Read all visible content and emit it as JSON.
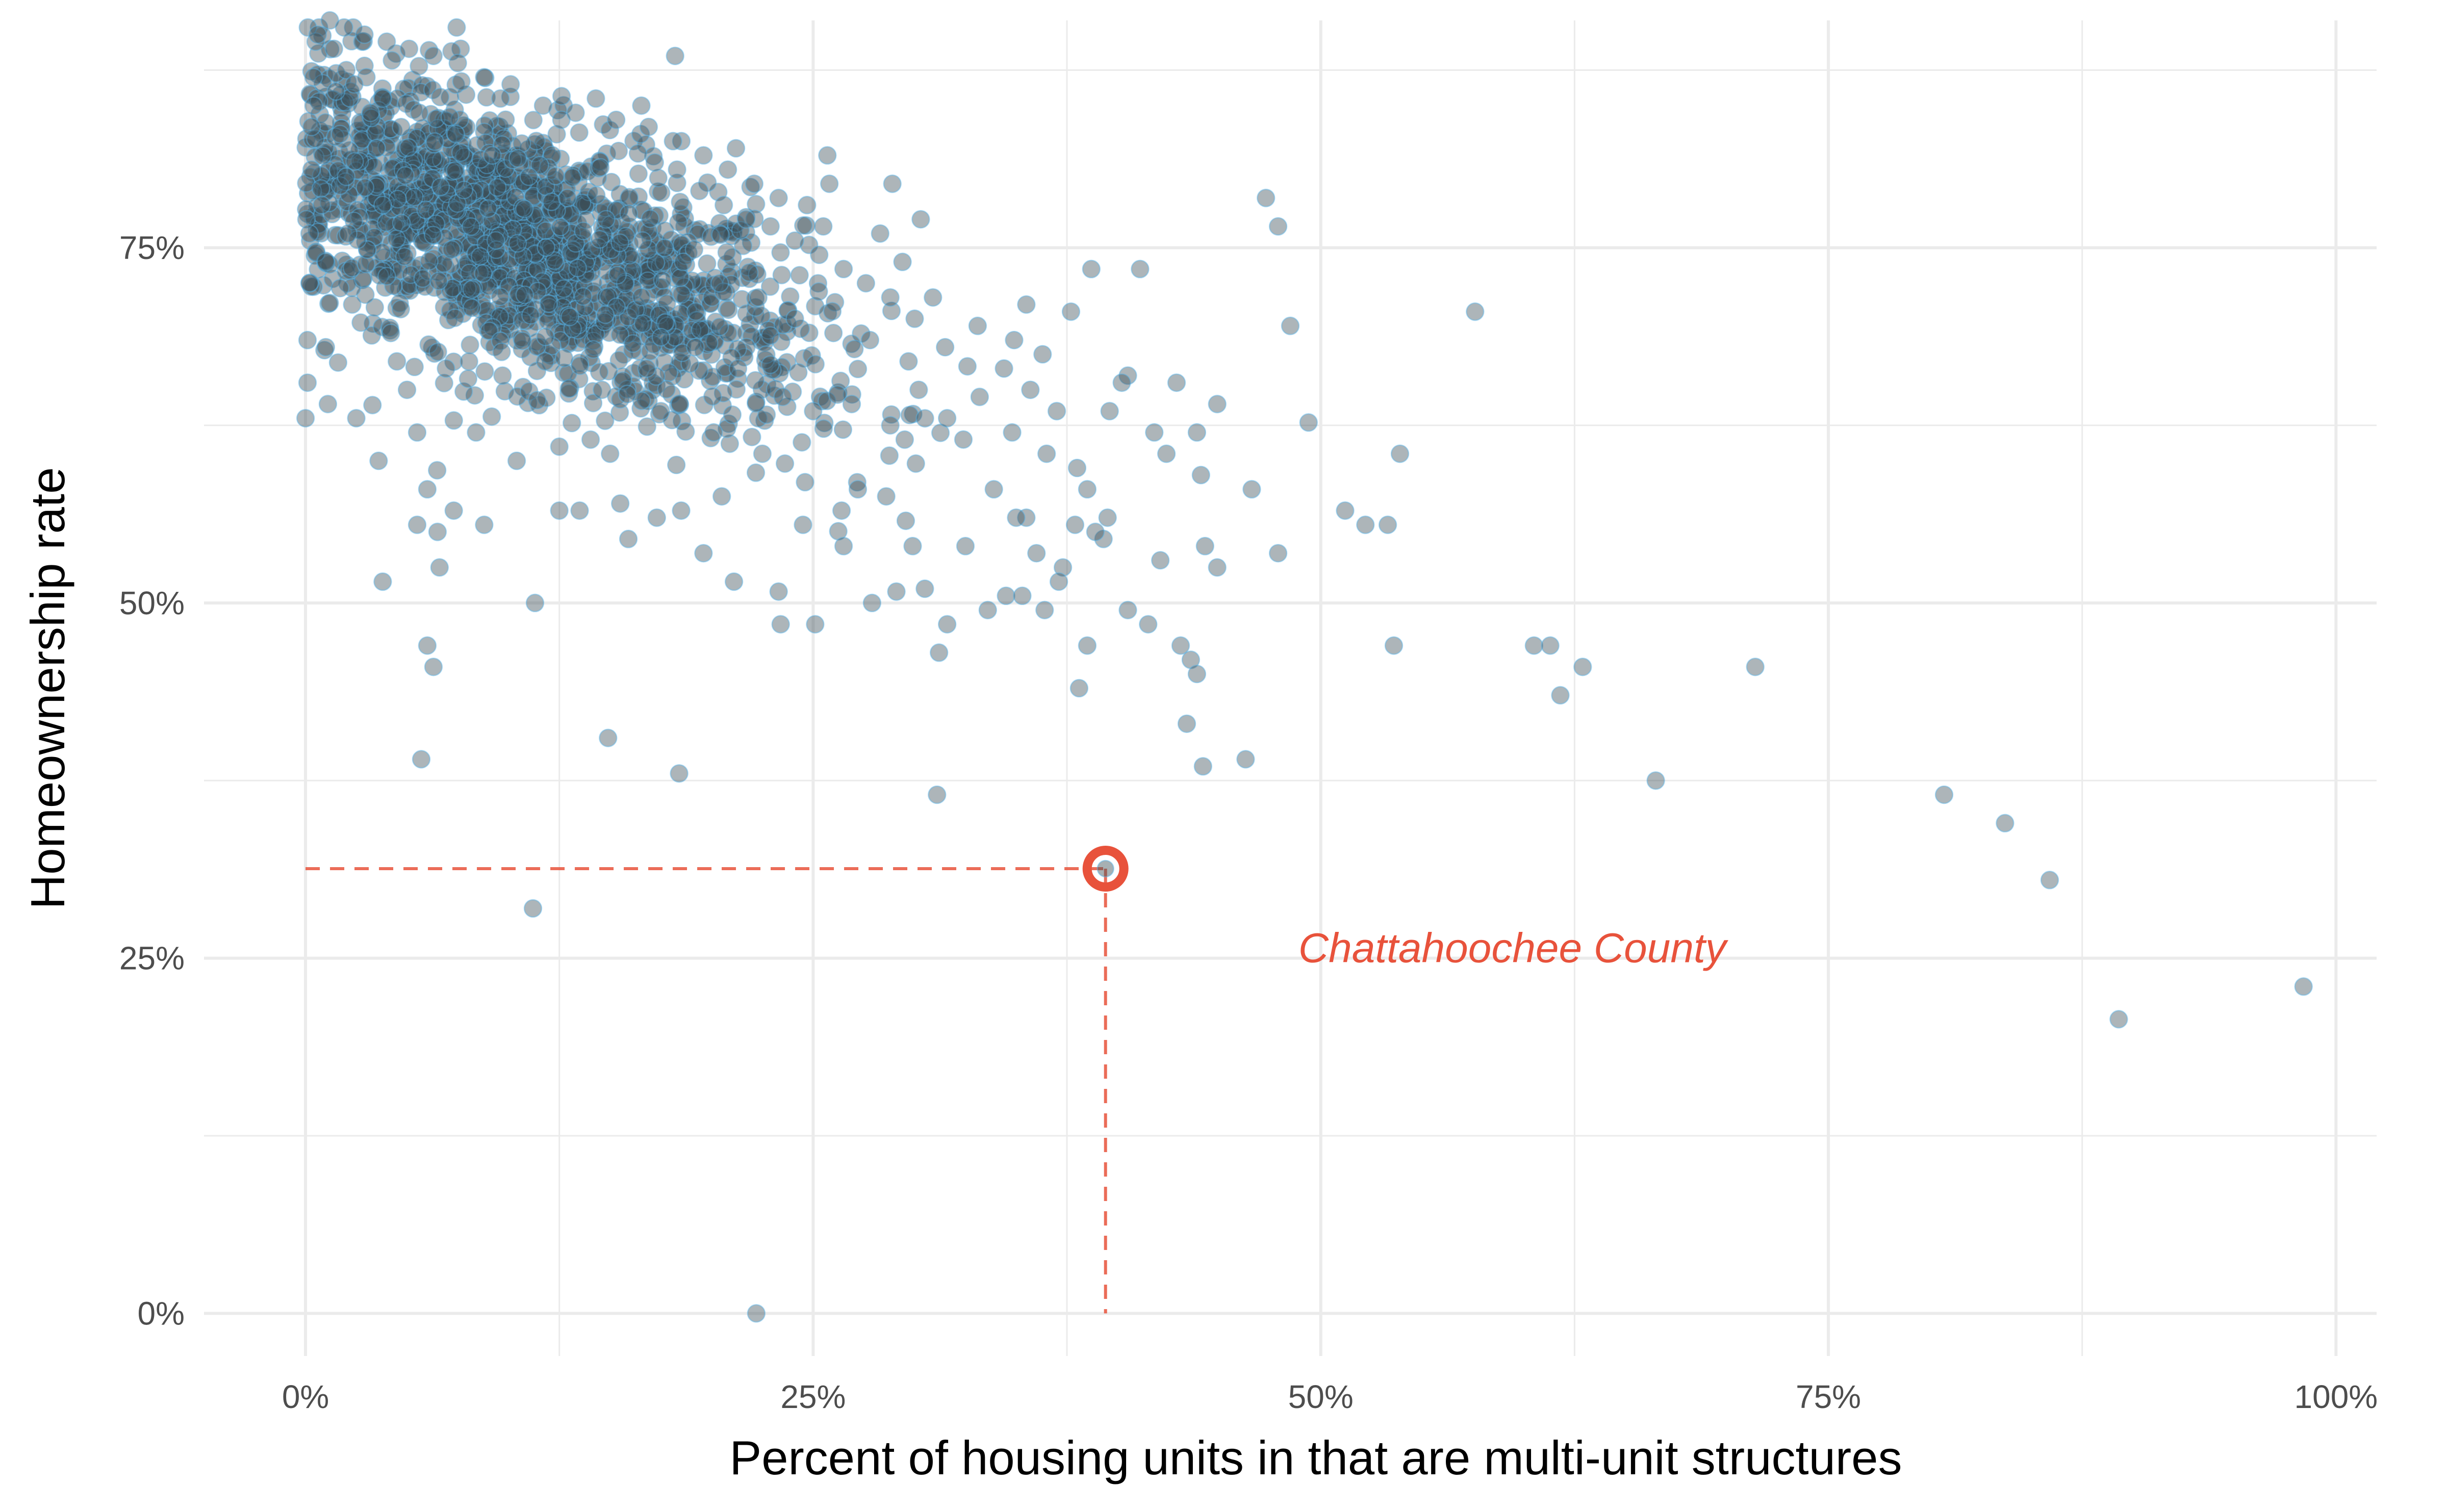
{
  "chart_data": {
    "type": "scatter",
    "title": "",
    "xlabel": "Percent of housing units in that are multi-unit structures",
    "ylabel": "Homeownership rate",
    "xlim": [
      -5,
      102
    ],
    "ylim": [
      -3,
      91
    ],
    "x_ticks": [
      0,
      25,
      50,
      75,
      100
    ],
    "x_tick_labels": [
      "0%",
      "25%",
      "50%",
      "75%",
      "100%"
    ],
    "y_ticks": [
      0,
      25,
      50,
      75
    ],
    "y_tick_labels": [
      "0%",
      "25%",
      "50%",
      "75%"
    ],
    "grid": true,
    "colors": {
      "point_fill": "#3c4f57",
      "point_stroke": "#56b4e9",
      "highlight": "#e8523b",
      "grid": "#ebebeb"
    },
    "highlight": {
      "label": "Chattahoochee County",
      "x": 39.4,
      "y": 31.3
    },
    "points": [
      [
        0.0,
        63.0
      ],
      [
        0.1,
        65.5
      ],
      [
        0.1,
        68.5
      ],
      [
        0.2,
        72.5
      ],
      [
        0.2,
        76.0
      ],
      [
        0.3,
        80.5
      ],
      [
        0.3,
        83.5
      ],
      [
        0.4,
        85.0
      ],
      [
        0.4,
        87.0
      ],
      [
        0.5,
        89.5
      ],
      [
        0.6,
        90.0
      ],
      [
        0.8,
        78.0
      ],
      [
        1.0,
        74.0
      ],
      [
        1.0,
        68.0
      ],
      [
        1.1,
        64.0
      ],
      [
        1.2,
        91.0
      ],
      [
        1.4,
        89.0
      ],
      [
        1.5,
        86.0
      ],
      [
        1.7,
        83.0
      ],
      [
        2.0,
        80.0
      ],
      [
        2.1,
        76.0
      ],
      [
        2.3,
        71.0
      ],
      [
        2.5,
        63.0
      ],
      [
        2.8,
        89.5
      ],
      [
        3.0,
        87.0
      ],
      [
        3.2,
        84.5
      ],
      [
        3.5,
        82.0
      ],
      [
        3.8,
        78.0
      ],
      [
        4.0,
        73.0
      ],
      [
        4.2,
        69.0
      ],
      [
        3.6,
        60.0
      ],
      [
        4.5,
        67.0
      ],
      [
        5.0,
        65.0
      ],
      [
        5.5,
        62.0
      ],
      [
        6.0,
        58.0
      ],
      [
        6.5,
        55.0
      ],
      [
        3.8,
        51.5
      ],
      [
        5.5,
        55.5
      ],
      [
        6.0,
        47.0
      ],
      [
        6.3,
        45.5
      ],
      [
        5.7,
        39.0
      ],
      [
        11.3,
        50.0
      ],
      [
        14.9,
        40.5
      ],
      [
        11.2,
        28.5
      ],
      [
        18.4,
        38.0
      ],
      [
        18.2,
        88.5
      ],
      [
        21.2,
        82.0
      ],
      [
        25.7,
        81.5
      ],
      [
        25.8,
        79.5
      ],
      [
        28.9,
        79.5
      ],
      [
        30.3,
        77.0
      ],
      [
        28.3,
        76.0
      ],
      [
        29.4,
        74.0
      ],
      [
        30.9,
        71.5
      ],
      [
        35.5,
        71.0
      ],
      [
        37.7,
        70.5
      ],
      [
        38.7,
        73.5
      ],
      [
        41.1,
        73.5
      ],
      [
        40.5,
        66.0
      ],
      [
        42.9,
        65.5
      ],
      [
        47.3,
        78.5
      ],
      [
        47.9,
        76.5
      ],
      [
        48.5,
        69.5
      ],
      [
        57.6,
        70.5
      ],
      [
        49.4,
        62.7
      ],
      [
        44.9,
        64.0
      ],
      [
        43.9,
        62.0
      ],
      [
        44.1,
        59.0
      ],
      [
        46.6,
        58.0
      ],
      [
        53.9,
        60.5
      ],
      [
        51.2,
        56.5
      ],
      [
        52.2,
        55.5
      ],
      [
        53.3,
        55.5
      ],
      [
        47.9,
        53.5
      ],
      [
        44.3,
        54.0
      ],
      [
        44.9,
        52.5
      ],
      [
        42.1,
        53.0
      ],
      [
        40.5,
        49.5
      ],
      [
        41.5,
        48.5
      ],
      [
        43.1,
        47.0
      ],
      [
        43.6,
        46.0
      ],
      [
        43.9,
        45.0
      ],
      [
        39.3,
        54.5
      ],
      [
        38.9,
        55.0
      ],
      [
        37.9,
        55.5
      ],
      [
        35.5,
        56.0
      ],
      [
        36.4,
        49.5
      ],
      [
        38.5,
        47.0
      ],
      [
        38.1,
        44.0
      ],
      [
        43.4,
        41.5
      ],
      [
        44.2,
        38.5
      ],
      [
        46.3,
        39.0
      ],
      [
        31.1,
        36.5
      ],
      [
        31.2,
        46.5
      ],
      [
        31.6,
        48.5
      ],
      [
        30.5,
        51.0
      ],
      [
        29.9,
        54.0
      ],
      [
        33.6,
        49.5
      ],
      [
        34.5,
        50.5
      ],
      [
        35.3,
        50.5
      ],
      [
        53.6,
        47.0
      ],
      [
        60.5,
        47.0
      ],
      [
        61.3,
        47.0
      ],
      [
        62.9,
        45.5
      ],
      [
        61.8,
        43.5
      ],
      [
        71.4,
        45.5
      ],
      [
        66.5,
        37.5
      ],
      [
        80.7,
        36.5
      ],
      [
        83.7,
        34.5
      ],
      [
        85.9,
        30.5
      ],
      [
        89.3,
        20.7
      ],
      [
        98.4,
        23.0
      ],
      [
        22.2,
        0.0
      ],
      [
        23.4,
        48.5
      ],
      [
        25.1,
        48.5
      ],
      [
        23.3,
        50.8
      ],
      [
        21.1,
        51.5
      ],
      [
        19.6,
        53.5
      ],
      [
        17.3,
        56.0
      ],
      [
        15.9,
        54.5
      ],
      [
        8.8,
        55.5
      ],
      [
        6.6,
        52.5
      ],
      [
        7.3,
        56.5
      ],
      [
        12.5,
        56.5
      ],
      [
        13.5,
        56.5
      ],
      [
        15.5,
        57.0
      ],
      [
        18.5,
        56.5
      ],
      [
        20.5,
        57.5
      ],
      [
        24.5,
        55.5
      ],
      [
        26.5,
        54.0
      ],
      [
        27.9,
        50.0
      ],
      [
        29.1,
        50.8
      ],
      [
        32.5,
        54.0
      ],
      [
        36.0,
        53.5
      ],
      [
        37.3,
        52.5
      ],
      [
        37.1,
        51.5
      ],
      [
        33.9,
        58.0
      ],
      [
        35.0,
        56.0
      ],
      [
        32.4,
        61.5
      ],
      [
        34.8,
        62.0
      ],
      [
        36.5,
        60.5
      ],
      [
        38.0,
        59.5
      ],
      [
        39.6,
        63.5
      ],
      [
        40.2,
        65.5
      ],
      [
        41.8,
        62.0
      ],
      [
        42.4,
        60.5
      ],
      [
        38.5,
        58.0
      ],
      [
        39.5,
        56.0
      ],
      [
        27.2,
        58.0
      ],
      [
        28.6,
        57.5
      ],
      [
        26.4,
        56.5
      ],
      [
        24.6,
        58.5
      ],
      [
        22.5,
        60.5
      ],
      [
        20.1,
        62.0
      ],
      [
        17.5,
        63.5
      ],
      [
        15.0,
        60.5
      ],
      [
        12.5,
        61.0
      ],
      [
        10.4,
        60.0
      ],
      [
        8.4,
        62.0
      ],
      [
        9.7,
        66.0
      ],
      [
        11.8,
        67.0
      ],
      [
        14.6,
        65.0
      ],
      [
        16.8,
        66.5
      ],
      [
        19.2,
        68.0
      ],
      [
        21.3,
        66.5
      ],
      [
        23.5,
        64.5
      ],
      [
        25.0,
        63.5
      ],
      [
        26.9,
        64.0
      ],
      [
        28.8,
        62.5
      ],
      [
        30.2,
        65.0
      ],
      [
        31.6,
        63.0
      ],
      [
        33.2,
        64.5
      ],
      [
        34.4,
        66.5
      ],
      [
        35.7,
        65.0
      ],
      [
        37.0,
        63.5
      ],
      [
        36.3,
        67.5
      ],
      [
        34.9,
        68.5
      ],
      [
        33.1,
        69.5
      ],
      [
        31.5,
        68.0
      ],
      [
        29.7,
        67.0
      ],
      [
        27.8,
        68.5
      ],
      [
        26.0,
        69.0
      ],
      [
        24.1,
        70.0
      ],
      [
        22.3,
        71.5
      ],
      [
        20.4,
        72.5
      ],
      [
        18.6,
        74.0
      ],
      [
        16.6,
        75.5
      ],
      [
        14.8,
        77.0
      ],
      [
        12.9,
        78.5
      ],
      [
        11.0,
        80.0
      ],
      [
        9.2,
        81.5
      ],
      [
        7.4,
        83.0
      ],
      [
        5.6,
        84.5
      ],
      [
        3.8,
        85.5
      ],
      [
        2.4,
        86.5
      ],
      [
        12.6,
        84.0
      ],
      [
        13.3,
        84.5
      ],
      [
        14.3,
        85.5
      ],
      [
        15.3,
        84.0
      ],
      [
        16.5,
        83.0
      ],
      [
        17.2,
        81.0
      ],
      [
        18.3,
        80.5
      ],
      [
        19.4,
        79.0
      ],
      [
        20.6,
        78.0
      ],
      [
        21.7,
        77.0
      ],
      [
        22.9,
        76.5
      ],
      [
        24.1,
        75.5
      ],
      [
        25.3,
        74.5
      ],
      [
        26.5,
        73.5
      ],
      [
        27.6,
        72.5
      ],
      [
        28.8,
        71.5
      ],
      [
        30.0,
        70.0
      ],
      [
        25.5,
        76.5
      ],
      [
        24.7,
        78.0
      ],
      [
        23.3,
        78.5
      ],
      [
        22.1,
        79.5
      ],
      [
        20.8,
        80.5
      ],
      [
        19.6,
        81.5
      ],
      [
        18.1,
        82.5
      ],
      [
        16.9,
        83.5
      ],
      [
        10.1,
        86.5
      ],
      [
        8.8,
        87.0
      ],
      [
        7.5,
        88.0
      ],
      [
        6.3,
        88.5
      ],
      [
        5.1,
        89.0
      ],
      [
        4.0,
        89.5
      ],
      [
        2.9,
        90.0
      ],
      [
        1.9,
        90.5
      ],
      [
        9.6,
        85.5
      ],
      [
        11.7,
        85.0
      ]
    ],
    "cluster": {
      "count": 1700,
      "x_mean": 10.5,
      "x_sd": 7.0,
      "slope": -0.55,
      "intercept": 81.0,
      "resid_sd": 4.5
    }
  }
}
